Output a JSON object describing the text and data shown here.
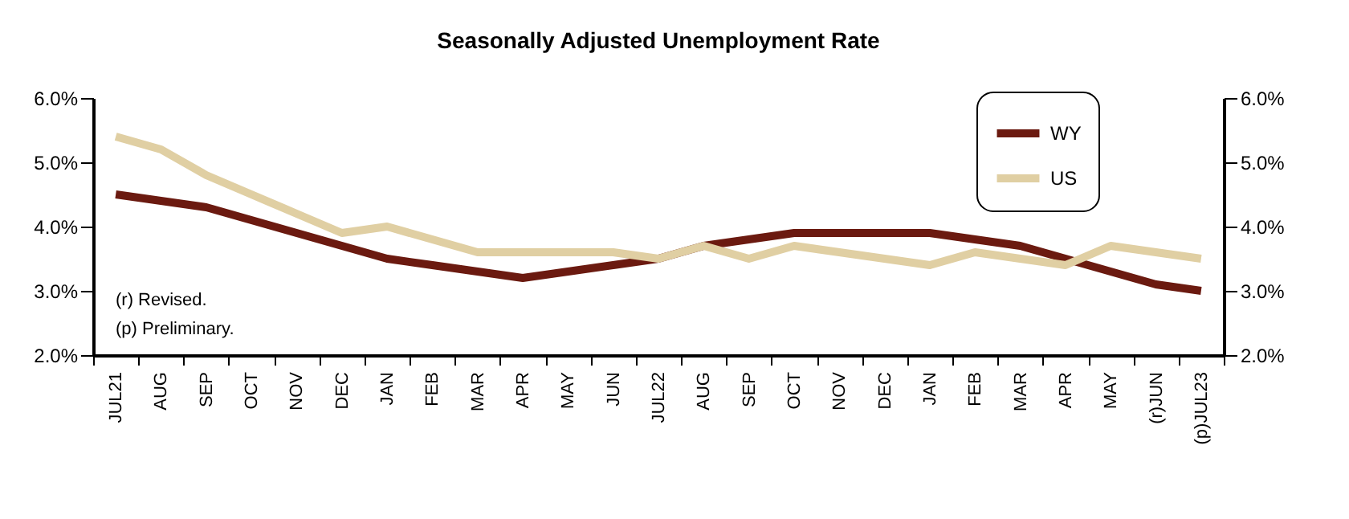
{
  "chart_data": {
    "type": "line",
    "title": "Seasonally Adjusted Unemployment Rate",
    "categories": [
      "JUL21",
      "AUG",
      "SEP",
      "OCT",
      "NOV",
      "DEC",
      "JAN",
      "FEB",
      "MAR",
      "APR",
      "MAY",
      "JUN",
      "JUL22",
      "AUG",
      "SEP",
      "OCT",
      "NOV",
      "DEC",
      "JAN",
      "FEB",
      "MAR",
      "APR",
      "MAY",
      "(r)JUN",
      "(p)JUL23"
    ],
    "series": [
      {
        "name": "WY",
        "color": "#6b1a10",
        "values": [
          4.5,
          4.4,
          4.3,
          4.1,
          3.9,
          3.7,
          3.5,
          3.4,
          3.3,
          3.2,
          3.3,
          3.4,
          3.5,
          3.7,
          3.8,
          3.9,
          3.9,
          3.9,
          3.9,
          3.8,
          3.7,
          3.5,
          3.3,
          3.1,
          3.0
        ]
      },
      {
        "name": "US",
        "color": "#e0cfa3",
        "values": [
          5.4,
          5.2,
          4.8,
          4.5,
          4.2,
          3.9,
          4.0,
          3.8,
          3.6,
          3.6,
          3.6,
          3.6,
          3.5,
          3.7,
          3.5,
          3.7,
          3.6,
          3.5,
          3.4,
          3.6,
          3.5,
          3.4,
          3.7,
          3.6,
          3.5
        ]
      }
    ],
    "ylim": [
      2,
      6
    ],
    "yticks": [
      {
        "value": 2,
        "label": "2.0%"
      },
      {
        "value": 3,
        "label": "3.0%"
      },
      {
        "value": 4,
        "label": "4.0%"
      },
      {
        "value": 5,
        "label": "5.0%"
      },
      {
        "value": 6,
        "label": "6.0%"
      }
    ],
    "y2lim": [
      2,
      6
    ],
    "y2ticks": [
      {
        "value": 2,
        "label": "2.0%"
      },
      {
        "value": 3,
        "label": "3.0%"
      },
      {
        "value": 4,
        "label": "4.0%"
      },
      {
        "value": 5,
        "label": "5.0%"
      },
      {
        "value": 6,
        "label": "6.0%"
      }
    ],
    "legend": "top right",
    "line_style": "solid",
    "annotations": [
      "(r) Revised.",
      "(p) Preliminary."
    ]
  }
}
